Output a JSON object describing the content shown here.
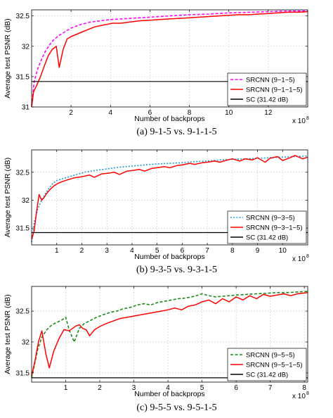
{
  "chart_data": [
    {
      "type": "line",
      "caption": "(a)  9-1-5  vs.  9-1-1-5",
      "xlabel": "Number of backprops",
      "ylabel": "Average test PSNR (dB)",
      "x_multiplier": "x 10",
      "x_exponent": "8",
      "xlim": [
        0,
        14
      ],
      "ylim": [
        31,
        32.6
      ],
      "xticks": [
        2,
        4,
        6,
        8,
        10,
        12
      ],
      "yticks": [
        31,
        31.5,
        32,
        32.5
      ],
      "grid": true,
      "legend_position": "lower-right",
      "series": [
        {
          "name": "SRCNN (9−1−5)",
          "color": "#ff00ff",
          "style": "dashed",
          "x": [
            0,
            0.12,
            0.3,
            0.5,
            0.7,
            0.9,
            1.1,
            1.4,
            1.7,
            2.0,
            2.5,
            3.0,
            3.5,
            4.0,
            5.0,
            6.0,
            7.0,
            8.0,
            9.0,
            10.0,
            11.0,
            12.0,
            13.0,
            14.0
          ],
          "y": [
            31.02,
            31.4,
            31.62,
            31.78,
            31.92,
            32.02,
            32.1,
            32.18,
            32.24,
            32.3,
            32.36,
            32.4,
            32.42,
            32.44,
            32.46,
            32.48,
            32.5,
            32.52,
            32.53,
            32.55,
            32.56,
            32.57,
            32.58,
            32.58
          ]
        },
        {
          "name": "SRCNN (9−1−1−5)",
          "color": "#ff0000",
          "style": "solid",
          "x": [
            0,
            0.1,
            0.25,
            0.45,
            0.65,
            0.85,
            1.05,
            1.25,
            1.4,
            1.6,
            1.8,
            2.0,
            2.3,
            2.6,
            2.9,
            3.2,
            3.5,
            3.8,
            4.1,
            4.5,
            5.0,
            5.5,
            6.0,
            6.5,
            7.0,
            7.5,
            8.0,
            8.5,
            9.0,
            9.5,
            10.0,
            10.5,
            11.0,
            11.5,
            12.0,
            12.5,
            13.0,
            13.5,
            14.0
          ],
          "y": [
            31.0,
            31.25,
            31.35,
            31.5,
            31.68,
            31.85,
            31.95,
            32.0,
            31.65,
            31.95,
            32.12,
            32.16,
            32.2,
            32.24,
            32.28,
            32.32,
            32.34,
            32.36,
            32.38,
            32.38,
            32.4,
            32.42,
            32.43,
            32.44,
            32.45,
            32.46,
            32.47,
            32.48,
            32.49,
            32.5,
            32.51,
            32.52,
            32.52,
            32.53,
            32.54,
            32.55,
            32.56,
            32.56,
            32.57
          ]
        },
        {
          "name": "SC (31.42 dB)",
          "color": "#000000",
          "style": "solid",
          "x": [
            0,
            14
          ],
          "y": [
            31.42,
            31.42
          ]
        }
      ]
    },
    {
      "type": "line",
      "caption": "(b)  9-3-5  vs.  9-3-1-5",
      "xlabel": "Number of backprops",
      "ylabel": "Average test PSNR (dB)",
      "x_multiplier": "x 10",
      "x_exponent": "8",
      "xlim": [
        0,
        11
      ],
      "ylim": [
        31.2,
        32.9
      ],
      "xticks": [
        1,
        2,
        3,
        4,
        5,
        6,
        7,
        8,
        9,
        10
      ],
      "yticks": [
        31.5,
        32,
        32.5
      ],
      "grid": true,
      "legend_position": "lower-right",
      "series": [
        {
          "name": "SRCNN (9−3−5)",
          "color": "#1f9ad6",
          "style": "dotted",
          "x": [
            0,
            0.1,
            0.25,
            0.4,
            0.55,
            0.7,
            0.85,
            1.0,
            1.2,
            1.5,
            1.8,
            2.1,
            2.5,
            3.0,
            3.5,
            4.0,
            4.5,
            5.0,
            5.5,
            6.0,
            6.5,
            7.0,
            7.5,
            8.0,
            8.5,
            9.0,
            9.5,
            10.0,
            10.5,
            11.0
          ],
          "y": [
            31.25,
            31.6,
            31.85,
            32.0,
            32.12,
            32.22,
            32.3,
            32.35,
            32.38,
            32.42,
            32.46,
            32.5,
            32.53,
            32.56,
            32.59,
            32.61,
            32.63,
            32.65,
            32.66,
            32.67,
            32.69,
            32.7,
            32.72,
            32.73,
            32.74,
            32.75,
            32.76,
            32.77,
            32.78,
            32.79
          ]
        },
        {
          "name": "SRCNN (9−3−1−5)",
          "color": "#ff0000",
          "style": "solid",
          "x": [
            0,
            0.1,
            0.2,
            0.3,
            0.4,
            0.5,
            0.6,
            0.75,
            0.9,
            1.05,
            1.2,
            1.4,
            1.7,
            2.0,
            2.3,
            2.5,
            2.8,
            3.0,
            3.3,
            3.5,
            3.8,
            4.0,
            4.3,
            4.5,
            4.8,
            5.0,
            5.3,
            5.5,
            5.8,
            6.0,
            6.3,
            6.5,
            6.8,
            7.0,
            7.3,
            7.5,
            7.8,
            8.0,
            8.3,
            8.5,
            8.8,
            9.0,
            9.3,
            9.5,
            9.8,
            10.0,
            10.3,
            10.5,
            10.8,
            11.0
          ],
          "y": [
            31.3,
            31.45,
            31.8,
            32.1,
            32.0,
            32.05,
            32.12,
            32.2,
            32.26,
            32.3,
            32.33,
            32.36,
            32.4,
            32.42,
            32.45,
            32.41,
            32.47,
            32.48,
            32.5,
            32.46,
            32.52,
            32.53,
            32.55,
            32.52,
            32.57,
            32.58,
            32.6,
            32.58,
            32.62,
            32.63,
            32.66,
            32.64,
            32.67,
            32.68,
            32.7,
            32.68,
            32.72,
            32.74,
            32.7,
            32.74,
            32.72,
            32.76,
            32.68,
            32.75,
            32.78,
            32.71,
            32.76,
            32.8,
            32.74,
            32.77
          ]
        },
        {
          "name": "SC (31.42 dB)",
          "color": "#000000",
          "style": "solid",
          "x": [
            0,
            11
          ],
          "y": [
            31.42,
            31.42
          ]
        }
      ]
    },
    {
      "type": "line",
      "caption": "(c)  9-5-5  vs.  9-5-1-5",
      "xlabel": "Number of backprops",
      "ylabel": "Average test PSNR (dB)",
      "x_multiplier": "x 10",
      "x_exponent": "8",
      "xlim": [
        0,
        8.1
      ],
      "ylim": [
        31.35,
        32.9
      ],
      "xticks": [
        1,
        2,
        3,
        4,
        5,
        6,
        7,
        8
      ],
      "yticks": [
        31.5,
        32,
        32.5
      ],
      "grid": true,
      "legend_position": "lower-right",
      "series": [
        {
          "name": "SRCNN (9−5−5)",
          "color": "#1a8a1a",
          "style": "dashed",
          "x": [
            0,
            0.08,
            0.18,
            0.3,
            0.45,
            0.6,
            0.75,
            0.9,
            1.0,
            1.1,
            1.25,
            1.4,
            1.55,
            1.7,
            1.9,
            2.1,
            2.3,
            2.5,
            2.7,
            2.9,
            3.1,
            3.3,
            3.5,
            3.7,
            3.9,
            4.1,
            4.3,
            4.5,
            4.7,
            4.9,
            5.0,
            5.2,
            5.4,
            5.6,
            5.8,
            6.0,
            6.3,
            6.6,
            6.9,
            7.2,
            7.5,
            7.8,
            8.1
          ],
          "y": [
            31.42,
            31.62,
            31.88,
            32.08,
            32.2,
            32.28,
            32.32,
            32.36,
            32.4,
            32.2,
            32.0,
            32.22,
            32.3,
            32.34,
            32.4,
            32.44,
            32.48,
            32.5,
            32.54,
            32.56,
            32.6,
            32.62,
            32.6,
            32.64,
            32.66,
            32.68,
            32.7,
            32.71,
            32.73,
            32.76,
            32.78,
            32.75,
            32.73,
            32.74,
            32.75,
            32.76,
            32.77,
            32.78,
            32.79,
            32.8,
            32.8,
            32.81,
            32.82
          ]
        },
        {
          "name": "SRCNN (9−5−1−5)",
          "color": "#ff0000",
          "style": "solid",
          "x": [
            0,
            0.1,
            0.2,
            0.3,
            0.42,
            0.52,
            0.65,
            0.8,
            0.95,
            1.1,
            1.2,
            1.3,
            1.4,
            1.5,
            1.6,
            1.7,
            1.85,
            2.0,
            2.2,
            2.4,
            2.6,
            2.8,
            3.0,
            3.2,
            3.4,
            3.6,
            3.8,
            4.0,
            4.2,
            4.4,
            4.6,
            4.8,
            5.0,
            5.2,
            5.4,
            5.6,
            5.8,
            6.0,
            6.2,
            6.4,
            6.6,
            6.8,
            7.0,
            7.2,
            7.4,
            7.6,
            7.8,
            8.1
          ],
          "y": [
            31.45,
            31.7,
            32.0,
            32.18,
            31.8,
            31.58,
            31.85,
            32.05,
            32.2,
            32.18,
            32.22,
            32.26,
            32.28,
            32.22,
            32.2,
            32.1,
            32.2,
            32.25,
            32.3,
            32.34,
            32.38,
            32.4,
            32.42,
            32.44,
            32.46,
            32.48,
            32.5,
            32.52,
            32.55,
            32.52,
            32.58,
            32.6,
            32.65,
            32.68,
            32.62,
            32.7,
            32.65,
            32.73,
            32.68,
            32.75,
            32.7,
            32.77,
            32.74,
            32.76,
            32.78,
            32.75,
            32.78,
            32.8
          ]
        },
        {
          "name": "SC (31.42 dB)",
          "color": "#000000",
          "style": "solid",
          "x": [
            0,
            8.1
          ],
          "y": [
            31.42,
            31.42
          ]
        }
      ]
    }
  ]
}
